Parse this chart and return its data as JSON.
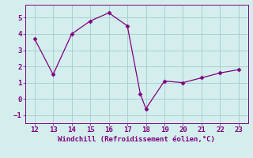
{
  "x": [
    12,
    13,
    14,
    15,
    16,
    17,
    17.7,
    18,
    19,
    20,
    21,
    22,
    23
  ],
  "y": [
    3.7,
    1.5,
    4.0,
    4.8,
    5.3,
    4.5,
    0.3,
    -0.6,
    1.1,
    1.0,
    1.3,
    1.6,
    1.8
  ],
  "line_color": "#800080",
  "marker": "D",
  "marker_size": 2.5,
  "xlabel": "Windchill (Refroidissement éolien,°C)",
  "xlabel_color": "#800080",
  "xlim": [
    11.5,
    23.5
  ],
  "ylim": [
    -1.5,
    5.8
  ],
  "xticks": [
    12,
    13,
    14,
    15,
    16,
    17,
    18,
    19,
    20,
    21,
    22,
    23
  ],
  "yticks": [
    -1,
    0,
    1,
    2,
    3,
    4,
    5
  ],
  "bg_color": "#d4eeee",
  "grid_color": "#aad0d0",
  "tick_color": "#800080",
  "spine_color": "#800080",
  "xlabel_fontsize": 6.5,
  "tick_fontsize": 6.5
}
